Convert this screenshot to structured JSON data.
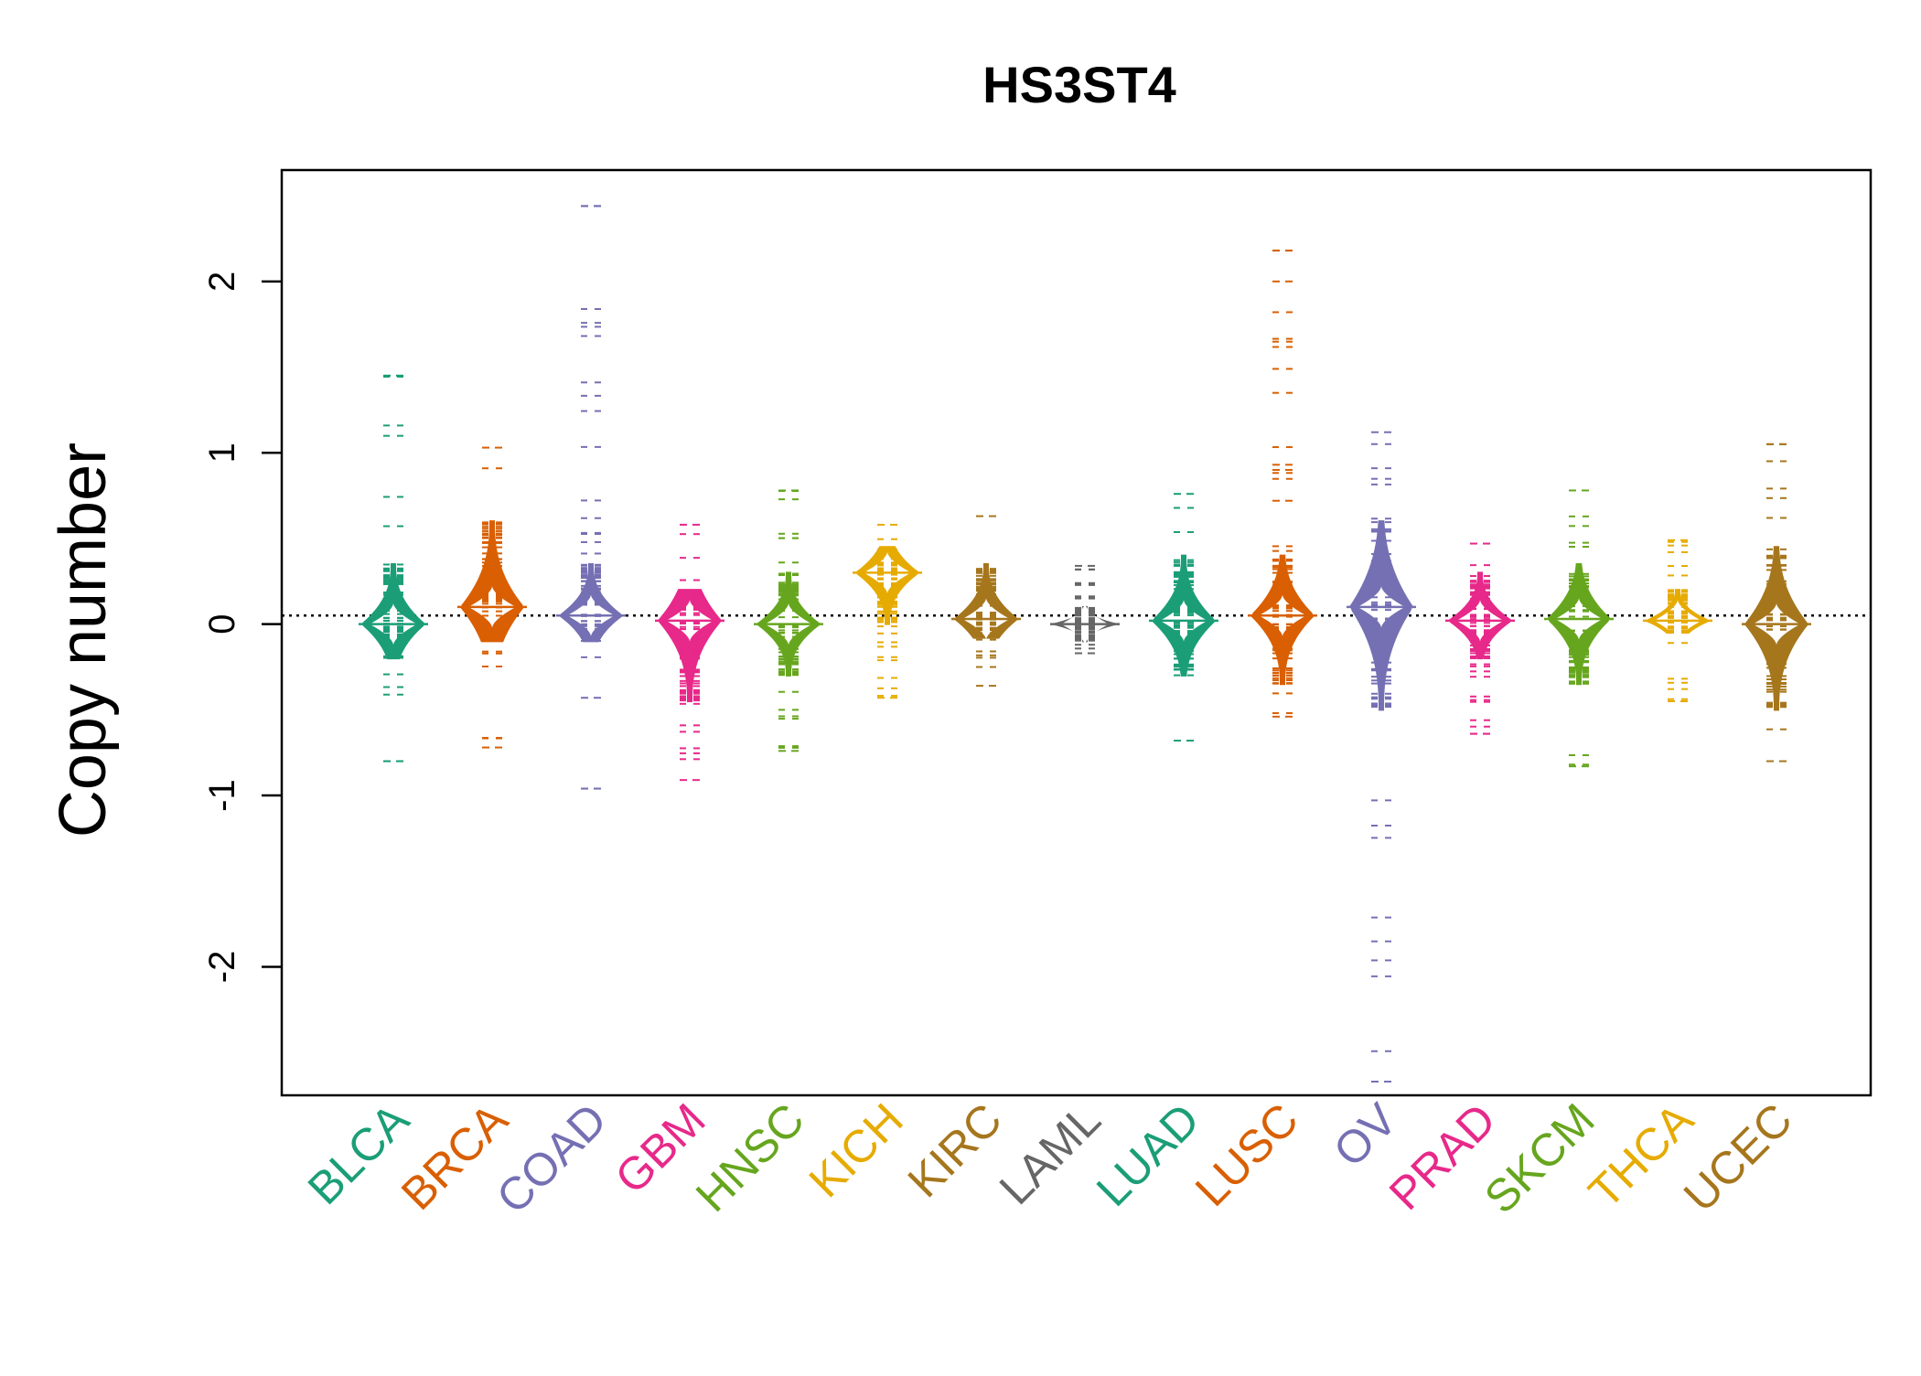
{
  "chart_data": {
    "type": "beanplot",
    "title": "HS3ST4",
    "ylabel": "Copy number",
    "xlabel": "",
    "ylim": [
      -2.75,
      2.65
    ],
    "yticks": [
      -2,
      -1,
      0,
      1,
      2
    ],
    "ytick_labels": [
      "-2",
      "-1",
      "0",
      "1",
      "2"
    ],
    "reference_line": 0.05,
    "grid": false,
    "series": [
      {
        "name": "BLCA",
        "color": "#1B9E77",
        "median": 0.0,
        "min": -0.8,
        "max": 1.45,
        "q1": -0.2,
        "q3": 0.35,
        "outliers": [
          1.45,
          -0.8
        ]
      },
      {
        "name": "BRCA",
        "color": "#D95F02",
        "median": 0.1,
        "min": -0.72,
        "max": 1.03,
        "q1": -0.1,
        "q3": 0.6,
        "outliers": []
      },
      {
        "name": "COAD",
        "color": "#7570B3",
        "median": 0.05,
        "min": -0.96,
        "max": 2.44,
        "q1": -0.1,
        "q3": 0.35,
        "outliers": [
          2.44,
          -0.96,
          -0.43
        ]
      },
      {
        "name": "GBM",
        "color": "#E7298A",
        "median": 0.02,
        "min": -0.91,
        "max": 0.58,
        "q1": -0.45,
        "q3": 0.2,
        "outliers": []
      },
      {
        "name": "HNSC",
        "color": "#66A61E",
        "median": 0.0,
        "min": -0.74,
        "max": 0.78,
        "q1": -0.3,
        "q3": 0.3,
        "outliers": []
      },
      {
        "name": "KICH",
        "color": "#E6AB02",
        "median": 0.3,
        "min": -0.43,
        "max": 0.58,
        "q1": 0.0,
        "q3": 0.45,
        "outliers": []
      },
      {
        "name": "KIRC",
        "color": "#A6761D",
        "median": 0.03,
        "min": -0.36,
        "max": 0.63,
        "q1": -0.08,
        "q3": 0.35,
        "outliers": []
      },
      {
        "name": "LAML",
        "color": "#666666",
        "median": 0.0,
        "min": -0.17,
        "max": 0.34,
        "q1": -0.1,
        "q3": 0.1,
        "outliers": []
      },
      {
        "name": "LUAD",
        "color": "#1B9E77",
        "median": 0.02,
        "min": -0.68,
        "max": 0.76,
        "q1": -0.3,
        "q3": 0.4,
        "outliers": []
      },
      {
        "name": "LUSC",
        "color": "#D95F02",
        "median": 0.05,
        "min": -0.54,
        "max": 2.18,
        "q1": -0.35,
        "q3": 0.4,
        "outliers": [
          2.18,
          2.0,
          0.93,
          0.9,
          0.72
        ]
      },
      {
        "name": "OV",
        "color": "#7570B3",
        "median": 0.1,
        "min": -2.67,
        "max": 1.12,
        "q1": -0.5,
        "q3": 0.6,
        "outliers": [
          -2.67
        ]
      },
      {
        "name": "PRAD",
        "color": "#E7298A",
        "median": 0.02,
        "min": -0.64,
        "max": 0.47,
        "q1": -0.2,
        "q3": 0.3,
        "outliers": [
          -0.64
        ]
      },
      {
        "name": "SKCM",
        "color": "#66A61E",
        "median": 0.03,
        "min": -0.83,
        "max": 0.78,
        "q1": -0.35,
        "q3": 0.35,
        "outliers": []
      },
      {
        "name": "THCA",
        "color": "#E6AB02",
        "median": 0.02,
        "min": -0.45,
        "max": 0.49,
        "q1": -0.05,
        "q3": 0.2,
        "outliers": [
          -0.45
        ]
      },
      {
        "name": "UCEC",
        "color": "#A6761D",
        "median": 0.0,
        "min": -0.8,
        "max": 1.05,
        "q1": -0.5,
        "q3": 0.45,
        "outliers": [
          1.05
        ]
      }
    ]
  }
}
